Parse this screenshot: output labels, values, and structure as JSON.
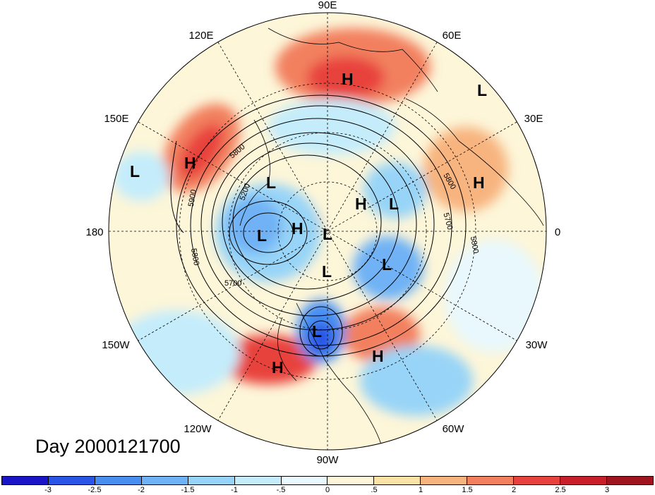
{
  "title": "Day 2000121700",
  "longitude_labels": [
    "90E",
    "60E",
    "30E",
    "0",
    "30W",
    "60W",
    "90W",
    "120W",
    "150W",
    "180",
    "150E",
    "120E"
  ],
  "contour_labels": [
    "5800",
    "5900",
    "5200",
    "5800",
    "5700",
    "5800",
    "5700",
    "5800"
  ],
  "pressure_centers": [
    "H",
    "L",
    "L",
    "H",
    "L",
    "H",
    "L",
    "H",
    "H",
    "L",
    "L",
    "L",
    "L",
    "L",
    "H",
    "H"
  ],
  "colorbar": {
    "ticks": [
      "-3",
      "-2.5",
      "-2",
      "-1.5",
      "-1",
      "-.5",
      "0",
      ".5",
      "1",
      "1.5",
      "2",
      "2.5",
      "3"
    ],
    "colors": [
      "#1a16c8",
      "#2b55e6",
      "#4a8ff0",
      "#6fb2f5",
      "#98d4f7",
      "#c4ecfb",
      "#e8f8fd",
      "#fdf6d9",
      "#fbe2a6",
      "#f7b47f",
      "#f2805f",
      "#e8423e",
      "#c81f2a",
      "#a0141f"
    ]
  },
  "map_colors": {
    "warm_strong": "#e8423e",
    "warm": "#f2805f",
    "warm_light": "#fbe2a6",
    "cool_light": "#c4ecfb",
    "cool": "#6fb2f5",
    "cool_strong": "#2b55e6",
    "neutral": "#fdf6d9"
  }
}
